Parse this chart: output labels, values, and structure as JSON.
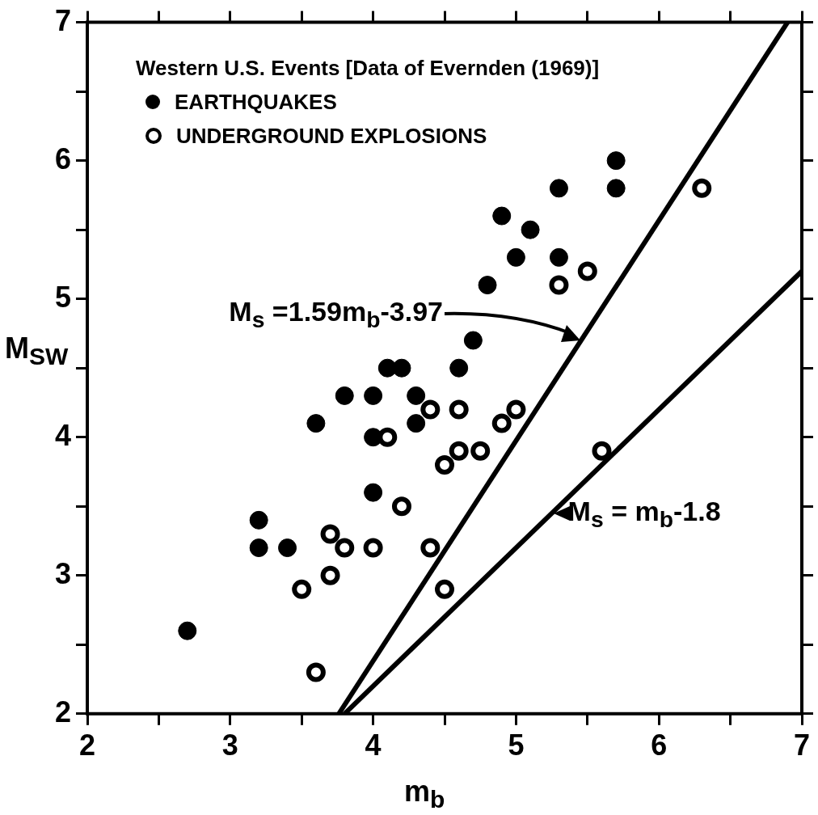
{
  "chart_data": {
    "type": "scatter",
    "xlabel": "m$_{b}$",
    "ylabel": "M$_{SW}$",
    "legend_title": "Western U.S. Events [Data of Evernden (1969)]",
    "legend": "top left",
    "marker": "circle",
    "grid": false,
    "xlim": [
      2,
      7
    ],
    "ylim": [
      2,
      7
    ],
    "xticks": [
      2,
      {
        "value": 2.5,
        "label": null
      },
      3,
      {
        "value": 3.5,
        "label": null
      },
      4,
      {
        "value": 4.5,
        "label": null
      },
      5,
      {
        "value": 5.5,
        "label": null
      },
      6,
      {
        "value": 6.5,
        "label": null
      },
      7
    ],
    "yticks": [
      2,
      {
        "value": 2.5,
        "label": null
      },
      3,
      {
        "value": 3.5,
        "label": null
      },
      4,
      {
        "value": 4.5,
        "label": null
      },
      5,
      {
        "value": 5.5,
        "label": null
      },
      6,
      {
        "value": 6.5,
        "label": null
      },
      7
    ],
    "series": [
      {
        "name": "EARTHQUAKES",
        "color": "#000000",
        "x": [
          2.7,
          3.2,
          3.2,
          3.4,
          3.6,
          3.8,
          4.0,
          4.0,
          4.0,
          4.1,
          4.2,
          4.3,
          4.3,
          4.6,
          4.7,
          4.8,
          4.9,
          5.0,
          5.1,
          5.3,
          5.3,
          5.7,
          5.7
        ],
        "values": [
          2.6,
          3.4,
          3.2,
          3.2,
          4.1,
          4.3,
          4.3,
          4.0,
          3.6,
          4.5,
          4.5,
          4.3,
          4.1,
          4.5,
          4.7,
          5.1,
          5.6,
          5.3,
          5.5,
          5.8,
          5.3,
          6.0,
          5.8
        ]
      },
      {
        "name": "UNDERGROUND EXPLOSIONS",
        "color": "#000000",
        "x": [
          3.6,
          3.5,
          3.7,
          3.7,
          3.8,
          4.0,
          4.1,
          4.2,
          4.4,
          4.4,
          4.5,
          4.5,
          4.6,
          4.6,
          4.75,
          4.9,
          5.0,
          5.3,
          5.5,
          5.6,
          6.3
        ],
        "values": [
          2.3,
          2.9,
          3.0,
          3.3,
          3.2,
          3.2,
          4.0,
          3.5,
          4.2,
          3.2,
          3.8,
          2.9,
          4.2,
          3.9,
          3.9,
          4.1,
          4.2,
          5.1,
          5.2,
          3.9,
          5.8
        ]
      },
      {
        "type": "line",
        "color": "#000000",
        "marker": "none",
        "x": [
          3.76,
          6.9
        ],
        "values": [
          2,
          7
        ]
      },
      {
        "type": "line",
        "color": "#000000",
        "marker": "none",
        "x": [
          3.8,
          7
        ],
        "values": [
          2,
          5.2
        ]
      }
    ],
    "annotations": [
      "M$_{s}$ =1.59m$_{b}$-3.97",
      {
        "text": "M$_{s}$ = m$_{b}$-1.8",
        "x": 5.25,
        "y": 3.45
      }
    ]
  }
}
